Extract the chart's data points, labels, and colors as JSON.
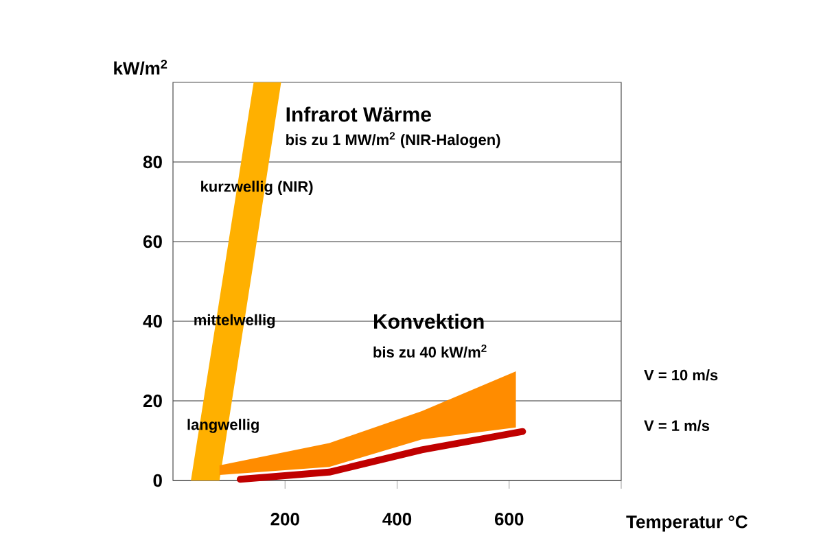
{
  "chart_data": {
    "type": "area",
    "xlabel": "Temperatur °C",
    "ylabel": "kW/m$^{2}$",
    "xlim": [
      0,
      800
    ],
    "ylim": [
      0,
      100
    ],
    "xticks": [
      200,
      400,
      600,
      {
        "value": 800,
        "label": null
      }
    ],
    "yticks": [
      0,
      20,
      40,
      60,
      80
    ],
    "grid": "y",
    "series": [
      {
        "color": "#ffb000",
        "x": [
          32,
          83,
          144,
          193
        ],
        "values": [
          null,
          null,
          null,
          null
        ],
        "upper": [
          0,
          45.5,
          100,
          100
        ],
        "lower": [
          0,
          0,
          55,
          100
        ]
      },
      {
        "color": "#ff8c00",
        "x": [
          83,
          279,
          444,
          612
        ],
        "values": [
          null,
          null,
          null,
          null
        ],
        "upper": [
          3.8,
          9.4,
          17.4,
          27.4
        ],
        "lower": [
          1.4,
          3.4,
          10.3,
          13.3
        ]
      },
      {
        "type": "line",
        "color": "#c00000",
        "x": [
          120,
          279,
          444,
          624
        ],
        "values": [
          0.3,
          2.1,
          7.7,
          12.3
        ]
      }
    ],
    "annotations": [
      "Infrarot Wärme",
      "bis zu 1 MW/m$^{2}$ (NIR-Halogen)",
      "kurzwellig (NIR)",
      "mittelwellig",
      "langwellig",
      "Konvektion",
      "bis zu 40 kW/m$^{2}$",
      "V = 10 m/s",
      "V = 1 m/s"
    ]
  }
}
